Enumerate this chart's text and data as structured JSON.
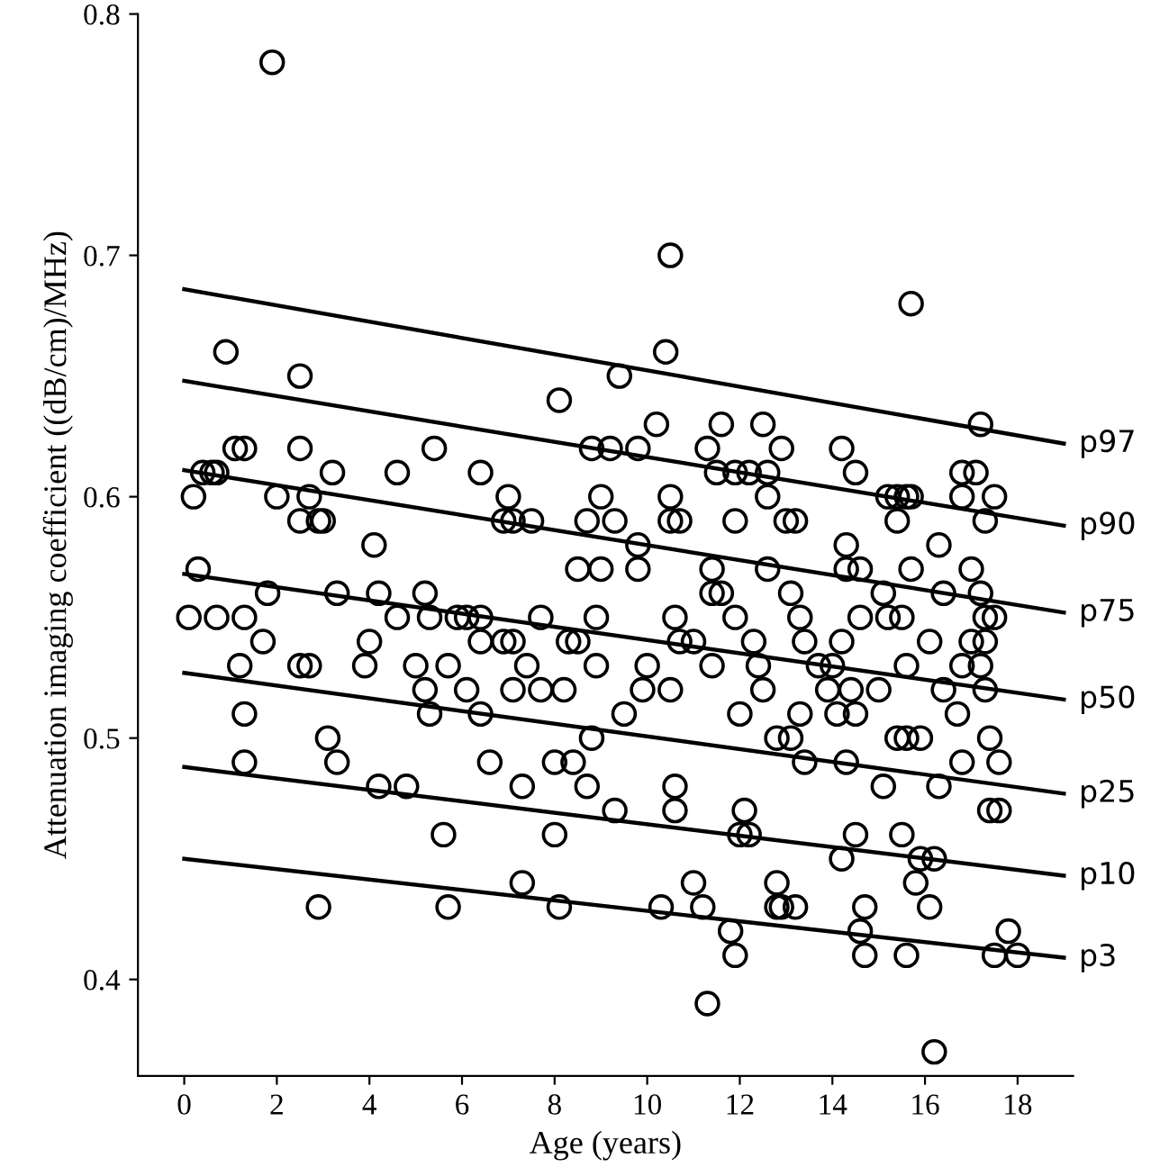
{
  "chart_data": {
    "type": "scatter",
    "xlabel": "Age (years)",
    "ylabel": "Attenuation imaging coefficient ((dB/cm)/MHz)",
    "xlim": [
      -1,
      19.2
    ],
    "ylim": [
      0.36,
      0.8
    ],
    "xticks": [
      0,
      2,
      4,
      6,
      8,
      10,
      12,
      14,
      16,
      18
    ],
    "yticks": [
      0.4,
      0.5,
      0.6,
      0.7,
      0.8
    ],
    "grid": false,
    "legend": false,
    "series": [
      {
        "marker": "circle",
        "color": "#000000",
        "x": [
          1.9,
          10.5,
          15.7,
          0.9,
          10.4,
          2.5,
          9.4,
          8.1,
          10.2,
          11.6,
          12.5,
          17.2,
          1.1,
          1.3,
          2.5,
          5.4,
          8.8,
          9.2,
          9.8,
          11.3,
          12.9,
          14.2,
          0.4,
          0.6,
          0.7,
          3.2,
          4.6,
          6.4,
          11.5,
          11.9,
          12.2,
          12.6,
          14.5,
          16.8,
          17.1,
          0.2,
          2.0,
          2.7,
          7.0,
          9.0,
          10.5,
          12.6,
          15.2,
          15.4,
          15.6,
          15.7,
          16.8,
          17.5,
          2.5,
          2.9,
          3.0,
          6.9,
          7.1,
          7.5,
          8.7,
          9.3,
          10.5,
          10.7,
          11.9,
          13.0,
          13.2,
          15.4,
          17.3,
          4.1,
          9.8,
          14.3,
          16.3,
          0.3,
          8.5,
          9.0,
          9.8,
          11.4,
          12.6,
          14.3,
          14.6,
          15.7,
          17.0,
          1.8,
          3.3,
          4.2,
          5.2,
          11.4,
          11.6,
          13.1,
          15.1,
          16.4,
          17.2,
          0.1,
          0.7,
          1.3,
          4.6,
          5.3,
          5.9,
          6.1,
          6.4,
          7.7,
          8.9,
          10.6,
          11.9,
          13.3,
          14.6,
          15.2,
          15.5,
          17.3,
          17.5,
          1.7,
          4.0,
          6.4,
          6.9,
          7.1,
          8.3,
          8.5,
          10.7,
          11.0,
          12.3,
          13.4,
          14.2,
          16.1,
          17.0,
          17.3,
          1.2,
          2.5,
          2.7,
          3.9,
          5.0,
          5.7,
          7.4,
          8.9,
          10.0,
          11.4,
          12.4,
          13.7,
          14.0,
          15.6,
          16.8,
          17.2,
          5.2,
          6.1,
          7.1,
          7.7,
          8.2,
          9.9,
          10.5,
          12.5,
          13.9,
          14.4,
          15.0,
          16.4,
          17.3,
          1.3,
          5.3,
          6.4,
          9.5,
          12.0,
          13.3,
          14.1,
          14.5,
          16.7,
          3.1,
          8.8,
          12.8,
          13.1,
          15.4,
          15.6,
          15.9,
          17.4,
          1.3,
          3.3,
          6.6,
          8.0,
          8.4,
          13.4,
          14.3,
          16.8,
          17.6,
          4.2,
          4.8,
          7.3,
          8.7,
          10.6,
          15.1,
          16.3,
          9.3,
          10.6,
          12.1,
          17.4,
          17.6,
          5.6,
          8.0,
          12.0,
          12.2,
          14.5,
          15.5,
          14.2,
          15.9,
          16.2,
          7.3,
          11.0,
          12.8,
          15.8,
          2.9,
          5.7,
          8.1,
          10.3,
          11.2,
          12.8,
          12.9,
          13.2,
          14.7,
          16.1,
          11.8,
          14.6,
          17.8,
          11.9,
          14.7,
          15.6,
          17.5,
          18.0,
          11.3,
          16.2
        ],
        "values": [
          0.78,
          0.7,
          0.68,
          0.66,
          0.66,
          0.65,
          0.65,
          0.64,
          0.63,
          0.63,
          0.63,
          0.63,
          0.62,
          0.62,
          0.62,
          0.62,
          0.62,
          0.62,
          0.62,
          0.62,
          0.62,
          0.62,
          0.61,
          0.61,
          0.61,
          0.61,
          0.61,
          0.61,
          0.61,
          0.61,
          0.61,
          0.61,
          0.61,
          0.61,
          0.61,
          0.6,
          0.6,
          0.6,
          0.6,
          0.6,
          0.6,
          0.6,
          0.6,
          0.6,
          0.6,
          0.6,
          0.6,
          0.6,
          0.59,
          0.59,
          0.59,
          0.59,
          0.59,
          0.59,
          0.59,
          0.59,
          0.59,
          0.59,
          0.59,
          0.59,
          0.59,
          0.59,
          0.59,
          0.58,
          0.58,
          0.58,
          0.58,
          0.57,
          0.57,
          0.57,
          0.57,
          0.57,
          0.57,
          0.57,
          0.57,
          0.57,
          0.57,
          0.56,
          0.56,
          0.56,
          0.56,
          0.56,
          0.56,
          0.56,
          0.56,
          0.56,
          0.56,
          0.55,
          0.55,
          0.55,
          0.55,
          0.55,
          0.55,
          0.55,
          0.55,
          0.55,
          0.55,
          0.55,
          0.55,
          0.55,
          0.55,
          0.55,
          0.55,
          0.55,
          0.55,
          0.54,
          0.54,
          0.54,
          0.54,
          0.54,
          0.54,
          0.54,
          0.54,
          0.54,
          0.54,
          0.54,
          0.54,
          0.54,
          0.54,
          0.54,
          0.53,
          0.53,
          0.53,
          0.53,
          0.53,
          0.53,
          0.53,
          0.53,
          0.53,
          0.53,
          0.53,
          0.53,
          0.53,
          0.53,
          0.53,
          0.53,
          0.52,
          0.52,
          0.52,
          0.52,
          0.52,
          0.52,
          0.52,
          0.52,
          0.52,
          0.52,
          0.52,
          0.52,
          0.52,
          0.51,
          0.51,
          0.51,
          0.51,
          0.51,
          0.51,
          0.51,
          0.51,
          0.51,
          0.5,
          0.5,
          0.5,
          0.5,
          0.5,
          0.5,
          0.5,
          0.5,
          0.49,
          0.49,
          0.49,
          0.49,
          0.49,
          0.49,
          0.49,
          0.49,
          0.49,
          0.48,
          0.48,
          0.48,
          0.48,
          0.48,
          0.48,
          0.48,
          0.47,
          0.47,
          0.47,
          0.47,
          0.47,
          0.46,
          0.46,
          0.46,
          0.46,
          0.46,
          0.46,
          0.45,
          0.45,
          0.45,
          0.44,
          0.44,
          0.44,
          0.44,
          0.43,
          0.43,
          0.43,
          0.43,
          0.43,
          0.43,
          0.43,
          0.43,
          0.43,
          0.43,
          0.42,
          0.42,
          0.42,
          0.41,
          0.41,
          0.41,
          0.41,
          0.41,
          0.39,
          0.37
        ]
      },
      {
        "type": "line",
        "name": "p97",
        "color": "#000000",
        "x": [
          0,
          19
        ],
        "values": [
          0.686,
          0.622
        ]
      },
      {
        "type": "line",
        "name": "p90",
        "color": "#000000",
        "x": [
          0,
          19
        ],
        "values": [
          0.648,
          0.588
        ]
      },
      {
        "type": "line",
        "name": "p75",
        "color": "#000000",
        "x": [
          0,
          19
        ],
        "values": [
          0.611,
          0.552
        ]
      },
      {
        "type": "line",
        "name": "p50",
        "color": "#000000",
        "x": [
          0,
          19
        ],
        "values": [
          0.568,
          0.516
        ]
      },
      {
        "type": "line",
        "name": "p25",
        "color": "#000000",
        "x": [
          0,
          19
        ],
        "values": [
          0.527,
          0.477
        ]
      },
      {
        "type": "line",
        "name": "p10",
        "color": "#000000",
        "x": [
          0,
          19
        ],
        "values": [
          0.488,
          0.443
        ]
      },
      {
        "type": "line",
        "name": "p3",
        "color": "#000000",
        "x": [
          0,
          19
        ],
        "values": [
          0.45,
          0.409
        ]
      }
    ]
  }
}
